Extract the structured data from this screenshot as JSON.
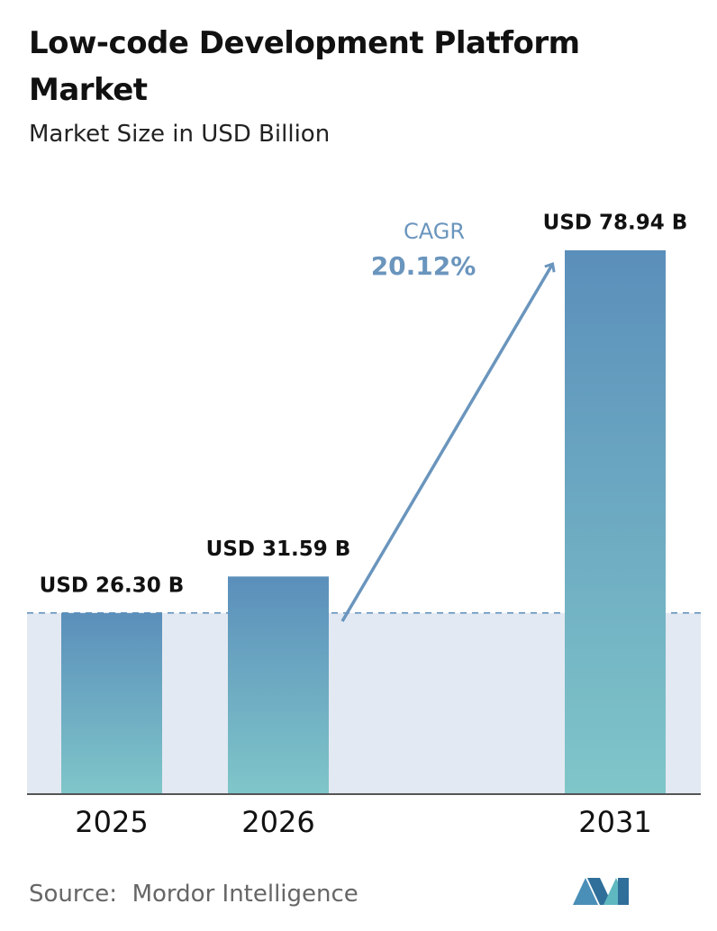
{
  "chart_data": {
    "type": "bar",
    "title": "Low-code Development Platform Market",
    "subtitle": "Market Size in USD Billion",
    "categories": [
      "2025",
      "2026",
      "2031"
    ],
    "values": [
      26.3,
      31.59,
      78.94
    ],
    "value_labels": [
      "USD 26.30 B",
      "USD 31.59 B",
      "USD 78.94 B"
    ],
    "annotations": [
      {
        "label": "CAGR",
        "value": "20.12%"
      }
    ],
    "source": "Source:  Mordor Intelligence"
  }
}
